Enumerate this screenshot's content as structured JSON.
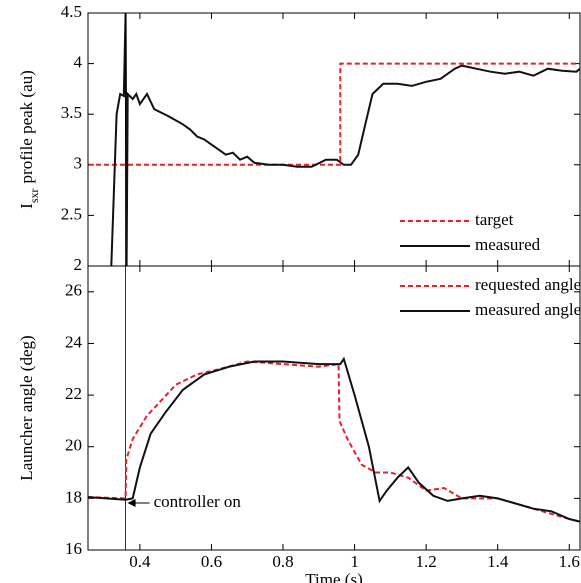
{
  "chart_data": [
    {
      "type": "line",
      "ylabel": [
        "I",
        "sxr",
        "profile peak (au)"
      ],
      "xlim": [
        0.255,
        1.63
      ],
      "xticks": [
        0.4,
        0.6,
        0.8,
        1,
        1.2,
        1.4,
        1.6
      ],
      "ylim": [
        2,
        4.5
      ],
      "yticks": [
        2,
        2.5,
        3,
        3.5,
        4,
        4.5
      ],
      "legend": "lower right",
      "series": [
        {
          "name": "target",
          "color": "#e8202a",
          "dash": true,
          "x": [
            0.255,
            0.96,
            0.96,
            1.63
          ],
          "values": [
            3,
            3,
            4,
            4
          ]
        },
        {
          "name": "measured",
          "color": "#111111",
          "dash": false,
          "x": [
            0.32,
            0.335,
            0.345,
            0.355,
            0.36,
            0.363,
            0.366,
            0.38,
            0.39,
            0.4,
            0.42,
            0.44,
            0.48,
            0.52,
            0.54,
            0.56,
            0.58,
            0.6,
            0.62,
            0.64,
            0.66,
            0.68,
            0.7,
            0.72,
            0.76,
            0.8,
            0.84,
            0.88,
            0.92,
            0.95,
            0.97,
            0.99,
            1.01,
            1.03,
            1.05,
            1.08,
            1.12,
            1.16,
            1.2,
            1.24,
            1.28,
            1.3,
            1.34,
            1.38,
            1.42,
            1.46,
            1.5,
            1.54,
            1.58,
            1.62,
            1.63
          ],
          "values": [
            2.0,
            3.5,
            3.7,
            3.68,
            4.5,
            2.0,
            3.7,
            3.65,
            3.7,
            3.6,
            3.7,
            3.55,
            3.48,
            3.4,
            3.35,
            3.28,
            3.25,
            3.2,
            3.15,
            3.1,
            3.12,
            3.05,
            3.08,
            3.02,
            3.0,
            3.0,
            2.98,
            2.98,
            3.05,
            3.05,
            3.0,
            3.0,
            3.1,
            3.4,
            3.7,
            3.8,
            3.8,
            3.78,
            3.82,
            3.85,
            3.95,
            3.98,
            3.95,
            3.92,
            3.9,
            3.92,
            3.88,
            3.95,
            3.93,
            3.92,
            3.95
          ]
        }
      ]
    },
    {
      "type": "line",
      "ylabel": [
        "Launcher angle (deg)"
      ],
      "xlabel": "Time (s)",
      "xlim": [
        0.255,
        1.63
      ],
      "xticks": [
        0.4,
        0.6,
        0.8,
        1,
        1.2,
        1.4,
        1.6
      ],
      "ylim": [
        16,
        27
      ],
      "yticks": [
        16,
        18,
        20,
        22,
        24,
        26
      ],
      "legend": "upper right",
      "annotation": {
        "text": "controller on",
        "x": 0.36
      },
      "series": [
        {
          "name": "requested angle",
          "color": "#e8202a",
          "dash": true,
          "x": [
            0.255,
            0.36,
            0.362,
            0.38,
            0.42,
            0.46,
            0.5,
            0.56,
            0.62,
            0.7,
            0.8,
            0.9,
            0.955,
            0.958,
            0.98,
            1.02,
            1.06,
            1.1,
            1.15,
            1.2,
            1.25,
            1.3,
            1.35,
            1.4,
            1.45,
            1.5,
            1.55,
            1.6,
            1.63
          ],
          "values": [
            18.05,
            18.0,
            19.5,
            20.3,
            21.2,
            21.8,
            22.4,
            22.8,
            23.0,
            23.3,
            23.2,
            23.1,
            23.2,
            21.0,
            20.3,
            19.3,
            19.0,
            19.0,
            18.8,
            18.3,
            18.4,
            18.0,
            18.0,
            18.0,
            17.8,
            17.6,
            17.4,
            17.2,
            17.1
          ]
        },
        {
          "name": "measured angle",
          "color": "#111111",
          "dash": false,
          "x": [
            0.255,
            0.36,
            0.38,
            0.4,
            0.43,
            0.47,
            0.52,
            0.58,
            0.65,
            0.72,
            0.8,
            0.9,
            0.96,
            0.97,
            1.0,
            1.04,
            1.07,
            1.09,
            1.12,
            1.15,
            1.18,
            1.22,
            1.26,
            1.3,
            1.35,
            1.4,
            1.45,
            1.5,
            1.55,
            1.6,
            1.63
          ],
          "values": [
            18.05,
            17.95,
            18.0,
            19.2,
            20.5,
            21.3,
            22.2,
            22.8,
            23.1,
            23.3,
            23.3,
            23.2,
            23.2,
            23.4,
            22.0,
            20.0,
            17.9,
            18.3,
            18.8,
            19.2,
            18.6,
            18.1,
            17.9,
            18.0,
            18.1,
            18.0,
            17.8,
            17.6,
            17.5,
            17.2,
            17.1
          ]
        }
      ]
    }
  ]
}
